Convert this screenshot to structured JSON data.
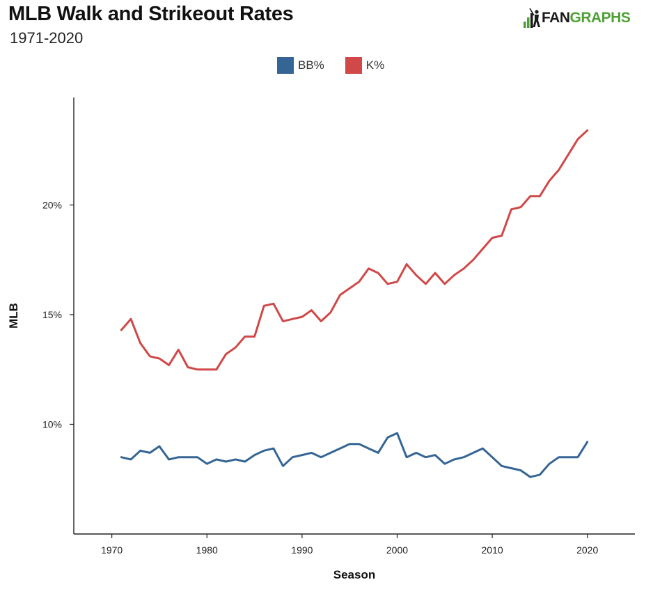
{
  "header": {
    "title": "MLB Walk and Strikeout Rates",
    "subtitle": "1971-2020"
  },
  "logo": {
    "text_dark": "FAN",
    "text_green": "GRAPHS",
    "icon": "batter-silhouette-icon"
  },
  "colors": {
    "bb": "#356594",
    "k": "#d04848",
    "brand_green": "#4fa136",
    "axis": "#222222"
  },
  "chart_data": {
    "type": "line",
    "title": "MLB Walk and Strikeout Rates",
    "subtitle": "1971-2020",
    "xlabel": "Season",
    "ylabel": "MLB",
    "xlim": [
      1966,
      2025
    ],
    "ylim": [
      5.0,
      24.9
    ],
    "x_ticks": [
      1970,
      1980,
      1990,
      2000,
      2010,
      2020
    ],
    "y_ticks": [
      10,
      15,
      20
    ],
    "y_tick_labels": [
      "10%",
      "15%",
      "20%"
    ],
    "grid": false,
    "legend_position": "top-center",
    "x": [
      1971,
      1972,
      1973,
      1974,
      1975,
      1976,
      1977,
      1978,
      1979,
      1980,
      1981,
      1982,
      1983,
      1984,
      1985,
      1986,
      1987,
      1988,
      1989,
      1990,
      1991,
      1992,
      1993,
      1994,
      1995,
      1996,
      1997,
      1998,
      1999,
      2000,
      2001,
      2002,
      2003,
      2004,
      2005,
      2006,
      2007,
      2008,
      2009,
      2010,
      2011,
      2012,
      2013,
      2014,
      2015,
      2016,
      2017,
      2018,
      2019,
      2020
    ],
    "series": [
      {
        "name": "BB%",
        "color": "#356594",
        "values": [
          8.5,
          8.4,
          8.8,
          8.7,
          9.0,
          8.4,
          8.5,
          8.5,
          8.5,
          8.2,
          8.4,
          8.3,
          8.4,
          8.3,
          8.6,
          8.8,
          8.9,
          8.1,
          8.5,
          8.6,
          8.7,
          8.5,
          8.7,
          8.9,
          9.1,
          9.1,
          8.9,
          8.7,
          9.4,
          9.6,
          8.5,
          8.7,
          8.5,
          8.6,
          8.2,
          8.4,
          8.5,
          8.7,
          8.9,
          8.5,
          8.1,
          8.0,
          7.9,
          7.6,
          7.7,
          8.2,
          8.5,
          8.5,
          8.5,
          9.2
        ]
      },
      {
        "name": "K%",
        "color": "#d04848",
        "values": [
          14.3,
          14.8,
          13.7,
          13.1,
          13.0,
          12.7,
          13.4,
          12.6,
          12.5,
          12.5,
          12.5,
          13.2,
          13.5,
          14.0,
          14.0,
          15.4,
          15.5,
          14.7,
          14.8,
          14.9,
          15.2,
          14.7,
          15.1,
          15.9,
          16.2,
          16.5,
          17.1,
          16.9,
          16.4,
          16.5,
          17.3,
          16.8,
          16.4,
          16.9,
          16.4,
          16.8,
          17.1,
          17.5,
          18.0,
          18.5,
          18.6,
          19.8,
          19.9,
          20.4,
          20.4,
          21.1,
          21.6,
          22.3,
          23.0,
          23.4
        ]
      }
    ]
  }
}
